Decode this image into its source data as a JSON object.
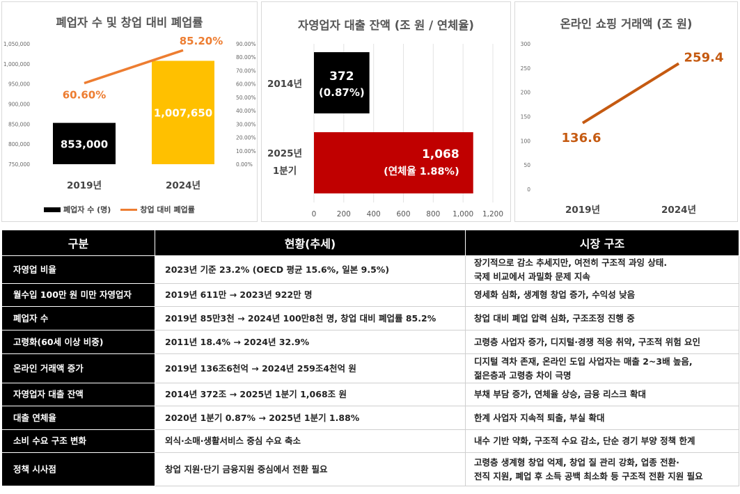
{
  "chart_data": [
    {
      "type": "bar+line",
      "title": "폐업자 수 및 창업 대비 폐업률",
      "categories": [
        "2019년",
        "2024년"
      ],
      "series": [
        {
          "name": "폐업자 수 (명)",
          "kind": "bar",
          "axis": "left",
          "values": [
            853000,
            1007650
          ],
          "labels": [
            "853,000",
            "1,007,650"
          ],
          "colors": [
            "#000000",
            "#FFC000"
          ]
        },
        {
          "name": "창업 대비 폐업률",
          "kind": "line",
          "axis": "right",
          "values": [
            60.6,
            85.2
          ],
          "labels": [
            "60.60%",
            "85.20%"
          ],
          "color": "#ED7D31"
        }
      ],
      "ylim_left": [
        750000,
        1050000
      ],
      "yticks_left": [
        "750,000",
        "800,000",
        "850,000",
        "900,000",
        "950,000",
        "1,000,000",
        "1,050,000"
      ],
      "ylim_right": [
        0,
        90
      ],
      "yticks_right": [
        "0.00%",
        "10.00%",
        "20.00%",
        "30.00%",
        "40.00%",
        "50.00%",
        "60.00%",
        "70.00%",
        "80.00%",
        "90.00%"
      ],
      "legend": "bottom"
    },
    {
      "type": "bar",
      "orientation": "horizontal",
      "title": "자영업자 대출 잔액 (조 원 / 연체율)",
      "categories": [
        [
          "2014년"
        ],
        [
          "2025년",
          "1분기"
        ]
      ],
      "values": [
        372,
        1068
      ],
      "labels": [
        [
          "372",
          "(0.87%)"
        ],
        [
          "1,068",
          "(연체율 1.88%)"
        ]
      ],
      "colors": [
        "#000000",
        "#C00000"
      ],
      "xlim": [
        0,
        1200
      ],
      "xticks": [
        "0",
        "200",
        "400",
        "600",
        "800",
        "1,000",
        "1,200"
      ]
    },
    {
      "type": "line",
      "title": "온라인 쇼핑 거래액 (조 원)",
      "categories": [
        "2019년",
        "2024년"
      ],
      "values": [
        136.6,
        259.4
      ],
      "labels": [
        "136.6",
        "259.4"
      ],
      "color": "#C55A11",
      "ylim": [
        0,
        300
      ],
      "yticks": [
        "0",
        "50",
        "100",
        "150",
        "200",
        "250",
        "300"
      ]
    }
  ],
  "table": {
    "headers": [
      "구분",
      "현황(추세)",
      "시장 구조"
    ],
    "rows": [
      {
        "label": "자영업 비율",
        "trend": "2023년 기준 23.2% (OECD 평균 15.6%, 일본 9.5%)",
        "structure": [
          "장기적으로 감소 추세지만, 여전히 구조적 과잉 상태.",
          "국제 비교에서 과밀화 문제 지속"
        ]
      },
      {
        "label": "월수입 100만 원 미만 자영업자",
        "trend": "2019년 611만 → 2023년 922만 명",
        "structure": [
          "영세화 심화, 생계형 창업 증가, 수익성 낮음"
        ]
      },
      {
        "label": "폐업자 수",
        "trend": "2019년 85만3천 → 2024년 100만8천 명, 창업 대비 폐업률 85.2%",
        "structure": [
          "창업 대비 폐업 압력 심화, 구조조정 진행 중"
        ]
      },
      {
        "label": "고령화(60세 이상 비중)",
        "trend": "2011년 18.4% → 2024년 32.9%",
        "structure": [
          "고령층 사업자 증가, 디지털·경쟁 적응 취약, 구조적 위험 요인"
        ]
      },
      {
        "label": "온라인 거래액 증가",
        "trend": "2019년 136조6천억 → 2024년 259조4천억 원",
        "structure": [
          "디지털 격차 존재, 온라인 도입 사업자는 매출 2~3배 높음,",
          "젊은층과 고령층 차이 극명"
        ]
      },
      {
        "label": "자영업자 대출 잔액",
        "trend": "2014년 372조 → 2025년 1분기 1,068조 원",
        "structure": [
          "부채 부담 증가, 연체율 상승, 금융 리스크 확대"
        ]
      },
      {
        "label": "대출 연체율",
        "trend": "2020년 1분기 0.87% → 2025년 1분기 1.88%",
        "structure": [
          "한계 사업자 지속적 퇴출, 부실 확대"
        ]
      },
      {
        "label": "소비 수요 구조 변화",
        "trend": "외식·소매·생활서비스 중심 수요 축소",
        "structure": [
          "내수 기반 약화, 구조적 수요 감소, 단순 경기 부양 정책 한계"
        ]
      },
      {
        "label": "정책 시사점",
        "trend": "창업 지원·단기 금융지원 중심에서 전환 필요",
        "structure": [
          "고령층 생계형 창업 억제, 창업 질 관리 강화, 업종 전환·",
          "전직 지원, 폐업 후 소득 공백 최소화 등 구조적 전환 지원 필요"
        ]
      }
    ]
  }
}
